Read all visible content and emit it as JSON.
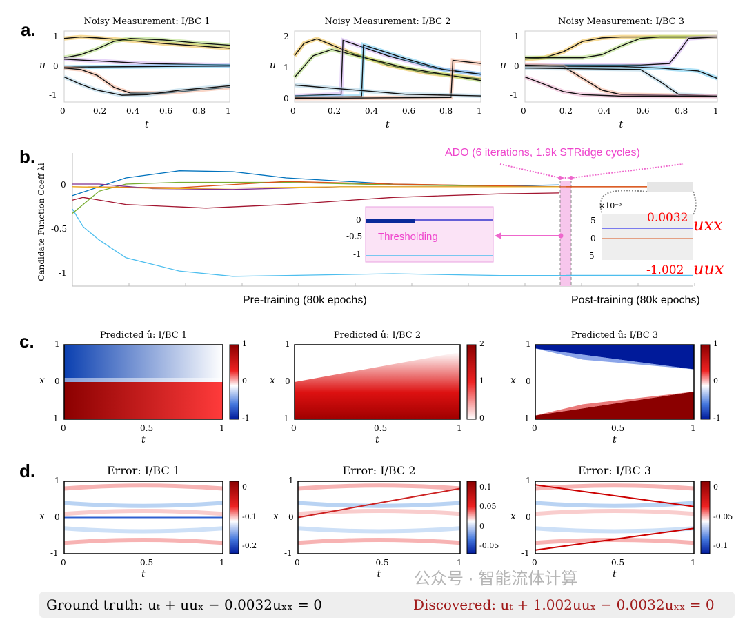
{
  "panel_labels": [
    "a.",
    "b.",
    "c.",
    "d."
  ],
  "chart_data": [
    {
      "id": "a1",
      "type": "line",
      "title": "Noisy Measurement: I/BC 1",
      "xlabel": "t",
      "ylabel": "u",
      "xlim": [
        0,
        1
      ],
      "ylim": [
        -1.2,
        1.2
      ],
      "xticks": [
        "0",
        "0.2",
        "0.4",
        "0.6",
        "0.8",
        "1"
      ],
      "yticks": [
        "-1",
        "0",
        "1"
      ],
      "series": [
        {
          "x": [
            0,
            0.1,
            0.2,
            0.4,
            0.6,
            0.8,
            1
          ],
          "y": [
            0.95,
            1.0,
            0.97,
            0.88,
            0.78,
            0.7,
            0.62
          ]
        },
        {
          "x": [
            0,
            0.1,
            0.2,
            0.3,
            0.4,
            0.6,
            0.8,
            1
          ],
          "y": [
            0.3,
            0.4,
            0.6,
            0.85,
            0.95,
            0.9,
            0.8,
            0.72
          ]
        },
        {
          "x": [
            0,
            0.5,
            1
          ],
          "y": [
            0.25,
            0.1,
            0.05
          ]
        },
        {
          "x": [
            0,
            0.5,
            1
          ],
          "y": [
            -0.02,
            0.0,
            0.02
          ]
        },
        {
          "x": [
            0,
            0.1,
            0.2,
            0.3,
            0.4,
            0.6,
            0.8,
            1
          ],
          "y": [
            -0.05,
            -0.1,
            -0.3,
            -0.7,
            -0.9,
            -0.9,
            -0.8,
            -0.7
          ]
        },
        {
          "x": [
            0,
            0.1,
            0.2,
            0.35,
            0.5,
            0.7,
            1
          ],
          "y": [
            -0.35,
            -0.6,
            -0.8,
            -0.97,
            -0.95,
            -0.8,
            -0.65
          ]
        }
      ]
    },
    {
      "id": "a2",
      "type": "line",
      "title": "Noisy Measurement: I/BC 2",
      "xlabel": "t",
      "ylabel": "u",
      "xlim": [
        0,
        1
      ],
      "ylim": [
        -0.1,
        2.2
      ],
      "xticks": [
        "0",
        "0.2",
        "0.4",
        "0.6",
        "0.8",
        "1"
      ],
      "yticks": [
        "0",
        "1",
        "2"
      ],
      "series": [
        {
          "x": [
            0,
            0.05,
            0.12,
            0.3,
            0.5,
            0.7,
            1
          ],
          "y": [
            1.4,
            1.8,
            1.95,
            1.5,
            1.1,
            0.85,
            0.65
          ]
        },
        {
          "x": [
            0,
            0.1,
            0.2,
            0.4,
            0.6,
            0.8,
            1
          ],
          "y": [
            0.7,
            1.4,
            1.6,
            1.3,
            1.0,
            0.8,
            0.6
          ]
        },
        {
          "x": [
            0,
            0.25,
            0.26,
            0.5,
            0.75,
            1
          ],
          "y": [
            0.1,
            0.15,
            1.9,
            1.4,
            1.0,
            0.8
          ]
        },
        {
          "x": [
            0,
            0.36,
            0.37,
            0.6,
            0.8,
            1
          ],
          "y": [
            0.05,
            0.08,
            1.75,
            1.3,
            0.95,
            0.8
          ]
        },
        {
          "x": [
            0,
            0.84,
            0.85,
            1
          ],
          "y": [
            0.02,
            0.05,
            1.25,
            1.15
          ]
        },
        {
          "x": [
            0,
            0.3,
            0.6,
            1
          ],
          "y": [
            0.45,
            0.3,
            0.15,
            0.1
          ]
        }
      ]
    },
    {
      "id": "a3",
      "type": "line",
      "title": "Noisy Measurement: I/BC 3",
      "xlabel": "t",
      "ylabel": "u",
      "xlim": [
        0,
        1
      ],
      "ylim": [
        -1.2,
        1.2
      ],
      "xticks": [
        "0",
        "0.2",
        "0.4",
        "0.6",
        "0.8",
        "1"
      ],
      "yticks": [
        "-1",
        "0",
        "1"
      ],
      "series": [
        {
          "x": [
            0,
            0.1,
            0.2,
            0.3,
            0.4,
            0.5,
            1
          ],
          "y": [
            0.25,
            0.3,
            0.5,
            0.85,
            0.97,
            1.0,
            1.0
          ]
        },
        {
          "x": [
            0,
            0.3,
            0.4,
            0.5,
            0.6,
            0.7,
            1
          ],
          "y": [
            0.3,
            0.3,
            0.4,
            0.7,
            0.95,
            1.0,
            1.0
          ]
        },
        {
          "x": [
            0,
            0.6,
            0.75,
            0.8,
            0.85,
            1
          ],
          "y": [
            0.05,
            0.05,
            0.1,
            0.5,
            0.95,
            1.0
          ]
        },
        {
          "x": [
            0,
            0.5,
            0.7,
            0.8,
            0.9,
            1
          ],
          "y": [
            0.0,
            0.0,
            -0.05,
            -0.1,
            -0.15,
            -0.4
          ]
        },
        {
          "x": [
            0,
            0.2,
            0.3,
            0.4,
            0.5,
            1
          ],
          "y": [
            0.05,
            0.0,
            -0.4,
            -0.8,
            -0.95,
            -1.0
          ]
        },
        {
          "x": [
            0,
            0.6,
            0.7,
            0.8,
            1
          ],
          "y": [
            -0.05,
            -0.1,
            -0.5,
            -0.95,
            -1.0
          ]
        },
        {
          "x": [
            0,
            0.1,
            0.2,
            0.3,
            0.5,
            1
          ],
          "y": [
            -0.35,
            -0.6,
            -0.85,
            -0.95,
            -1.0,
            -1.0
          ]
        }
      ]
    },
    {
      "id": "b",
      "type": "line",
      "ylabel": "Candidate Function Coeff λi",
      "ylim": [
        -1.12,
        0.38
      ],
      "yticks": [
        "0",
        "-0.5",
        "-1"
      ],
      "x_labels": [
        "Pre-training (80k epochs)",
        "Post-training (80k epochs)"
      ],
      "series": [
        {
          "color": "#4DBEEE",
          "x": [
            0,
            0.02,
            0.05,
            0.1,
            0.2,
            0.3,
            0.4,
            0.6,
            0.8,
            0.9,
            1
          ],
          "y": [
            -0.25,
            -0.45,
            -0.6,
            -0.8,
            -0.95,
            -1.01,
            -1.0,
            -0.98,
            -1.0,
            -1.0,
            -1.0
          ]
        },
        {
          "color": "#A2142F",
          "x": [
            0,
            0.02,
            0.1,
            0.25,
            0.4,
            0.6,
            0.8,
            0.91
          ],
          "y": [
            -0.15,
            -0.12,
            -0.2,
            -0.24,
            -0.2,
            -0.12,
            -0.08,
            -0.07
          ]
        },
        {
          "color": "#0072BD",
          "x": [
            0,
            0.1,
            0.2,
            0.3,
            0.4,
            0.6,
            0.8,
            0.91
          ],
          "y": [
            -0.1,
            0.1,
            0.18,
            0.17,
            0.1,
            0.03,
            0.01,
            0.02
          ]
        },
        {
          "color": "#77AC30",
          "x": [
            0,
            0.05,
            0.1,
            0.2,
            0.4,
            0.6,
            0.91
          ],
          "y": [
            -0.3,
            -0.05,
            0.03,
            0.05,
            0.05,
            0.02,
            0.0
          ]
        },
        {
          "color": "#D95319",
          "x": [
            0,
            0.2,
            0.4,
            0.6,
            0.91,
            1
          ],
          "y": [
            0.0,
            -0.01,
            0.06,
            0.03,
            0.0,
            0.0
          ]
        },
        {
          "color": "#7E2F8E",
          "x": [
            0,
            0.05,
            0.15,
            0.3,
            0.5,
            0.91
          ],
          "y": [
            0.03,
            0.03,
            -0.02,
            -0.03,
            0.0,
            0.0
          ]
        },
        {
          "color": "#EDB120",
          "x": [
            0,
            0.2,
            0.5,
            0.91
          ],
          "y": [
            0.0,
            -0.02,
            0.0,
            0.0
          ]
        }
      ],
      "annotations": {
        "ado": "ADO (6 iterations, 1.9k STRidge cycles)",
        "thresholding": "Thresholding",
        "inset_left_yticks": [
          "0",
          "-0.5",
          "-1"
        ],
        "inset_right_yticks": [
          "5",
          "0",
          "-5"
        ],
        "inset_right_scale": "×10⁻³",
        "value_uxx": "0.0032",
        "value_uux": "-1.002",
        "term_uxx": "uxx",
        "term_uux": "uux"
      }
    },
    {
      "id": "c1",
      "type": "heatmap",
      "title": "Predicted û: I/BC 1",
      "xlabel": "t",
      "ylabel": "x",
      "xticks": [
        "0",
        "0.5",
        "1"
      ],
      "yticks": [
        "1",
        "0",
        "-1"
      ],
      "colorbar": [
        "1",
        "0",
        "-1"
      ],
      "clim": [
        -1,
        1
      ]
    },
    {
      "id": "c2",
      "type": "heatmap",
      "title": "Predicted û: I/BC 2",
      "xlabel": "t",
      "ylabel": "x",
      "xticks": [
        "0",
        "0.5",
        "1"
      ],
      "yticks": [
        "1",
        "0",
        "-1"
      ],
      "colorbar": [
        "2",
        "1",
        "0"
      ],
      "clim": [
        0,
        2
      ]
    },
    {
      "id": "c3",
      "type": "heatmap",
      "title": "Predicted û: I/BC 3",
      "xlabel": "t",
      "ylabel": "x",
      "xticks": [
        "0",
        "0.5",
        "1"
      ],
      "yticks": [
        "1",
        "0",
        "-1"
      ],
      "colorbar": [
        "1",
        "0",
        "-1"
      ],
      "clim": [
        -1,
        1
      ]
    },
    {
      "id": "d1",
      "type": "heatmap",
      "title": "Error: I/BC 1",
      "xlabel": "t",
      "ylabel": "x",
      "xticks": [
        "0",
        "0.5",
        "1"
      ],
      "yticks": [
        "1",
        "0",
        "-1"
      ],
      "colorbar": [
        "0",
        "-0.1",
        "-0.2"
      ]
    },
    {
      "id": "d2",
      "type": "heatmap",
      "title": "Error: I/BC 2",
      "xlabel": "t",
      "ylabel": "x",
      "xticks": [
        "0",
        "0.5",
        "1"
      ],
      "yticks": [
        "1",
        "0",
        "-1"
      ],
      "colorbar": [
        "0.1",
        "0.05",
        "0",
        "-0.05"
      ]
    },
    {
      "id": "d3",
      "type": "heatmap",
      "title": "Error: I/BC 3",
      "xlabel": "t",
      "ylabel": "x",
      "xticks": [
        "0",
        "0.5",
        "1"
      ],
      "yticks": [
        "1",
        "0",
        "-1"
      ],
      "colorbar": [
        "0",
        "-0.05",
        "-0.1"
      ]
    }
  ],
  "footer": {
    "ground_truth": "Ground truth: uₜ + uuₓ − 0.0032uₓₓ = 0",
    "discovered": "Discovered: uₜ + 1.002uuₓ − 0.0032uₓₓ = 0",
    "watermark": "公众号 · 智能流体计算"
  },
  "colors": {
    "annotation": "#EE66CC",
    "discovered": "#A01A1A",
    "highlight_red": "#FF0000"
  }
}
